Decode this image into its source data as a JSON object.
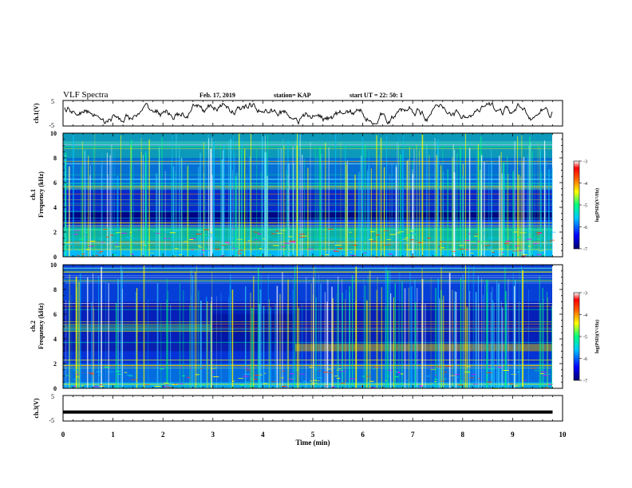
{
  "header": {
    "title": "VLF Spectra",
    "date": "Feb. 17, 2019",
    "station": "station= KAP",
    "start": "start  UT =   22: 50: 1"
  },
  "colors": {
    "background": "#0a1fb0",
    "low": "#00006e",
    "mid": "#00c8ff",
    "high": "#ffff00"
  },
  "chart_data": [
    {
      "type": "line",
      "panel": "ch1-waveform",
      "ylabel": "ch.1(V)",
      "ylim": [
        -5,
        5
      ],
      "yticks": [
        "5",
        "-5"
      ],
      "xlim": [
        0,
        10
      ]
    },
    {
      "type": "heatmap",
      "panel": "ch1-spectrogram",
      "ylabel_top": "ch.1",
      "ylabel": "Frequency  (kHz)",
      "ylim": [
        0,
        10
      ],
      "yticks": [
        "0",
        "2",
        "4",
        "6",
        "8",
        "10"
      ],
      "xlim": [
        0,
        10
      ],
      "colorbar": {
        "label": "log(PSD)(V²/Hz)",
        "ticks": [
          "-3",
          "-4",
          "-5",
          "-6",
          "-7"
        ],
        "range": [
          -7,
          -3
        ]
      }
    },
    {
      "type": "heatmap",
      "panel": "ch2-spectrogram",
      "ylabel_top": "ch.2",
      "ylabel": "Frequency  (kHz)",
      "ylim": [
        0,
        10
      ],
      "yticks": [
        "0",
        "2",
        "4",
        "6",
        "8",
        "10"
      ],
      "xlim": [
        0,
        10
      ],
      "colorbar": {
        "label": "log(PSD)(V²/Hz)",
        "ticks": [
          "-3",
          "-4",
          "-5",
          "-6",
          "-7"
        ],
        "range": [
          -7,
          -3
        ]
      }
    },
    {
      "type": "line",
      "panel": "ch3-waveform",
      "ylabel": "ch.3(V)",
      "ylim": [
        -5,
        5
      ],
      "yticks": [
        "5",
        "-5"
      ],
      "xlim": [
        0,
        10
      ],
      "values": [
        [
          0,
          -1.5
        ],
        [
          9.8,
          -1.5
        ]
      ]
    }
  ],
  "xaxis": {
    "label": "Time  (min)",
    "ticks": [
      "0",
      "1",
      "2",
      "3",
      "4",
      "5",
      "6",
      "7",
      "8",
      "9",
      "10"
    ]
  }
}
